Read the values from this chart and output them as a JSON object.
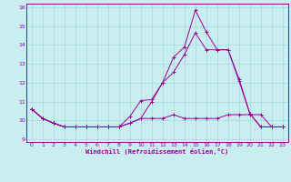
{
  "xlabel": "Windchill (Refroidissement éolien,°C)",
  "background_color": "#c8eef0",
  "grid_color": "#a8d8dc",
  "line_color": "#990099",
  "xlim": [
    -0.5,
    23.5
  ],
  "ylim": [
    8.85,
    16.2
  ],
  "xticks": [
    0,
    1,
    2,
    3,
    4,
    5,
    6,
    7,
    8,
    9,
    10,
    11,
    12,
    13,
    14,
    15,
    16,
    17,
    18,
    19,
    20,
    21,
    22,
    23
  ],
  "yticks": [
    9,
    10,
    11,
    12,
    13,
    14,
    15,
    16
  ],
  "line1_x": [
    0,
    1,
    2,
    3,
    4,
    5,
    6,
    7,
    8,
    9,
    10,
    11,
    12,
    13,
    14,
    15,
    16,
    17,
    18,
    19,
    20,
    21,
    22,
    23
  ],
  "line1_y": [
    10.6,
    10.1,
    9.85,
    9.65,
    9.65,
    9.65,
    9.65,
    9.65,
    9.65,
    9.85,
    10.1,
    10.1,
    10.1,
    10.3,
    10.1,
    10.1,
    10.1,
    10.1,
    10.3,
    10.3,
    10.3,
    10.3,
    9.65,
    9.65
  ],
  "line2_x": [
    0,
    1,
    2,
    3,
    4,
    5,
    6,
    7,
    8,
    9,
    10,
    11,
    12,
    13,
    14,
    15,
    16,
    17,
    18,
    19,
    20,
    21,
    22,
    23
  ],
  "line2_y": [
    10.6,
    10.1,
    9.85,
    9.65,
    9.65,
    9.65,
    9.65,
    9.65,
    9.65,
    9.85,
    10.1,
    11.0,
    12.0,
    13.35,
    13.9,
    15.85,
    14.7,
    13.75,
    13.75,
    12.1,
    10.35,
    9.65,
    9.65,
    9.65
  ],
  "line3_x": [
    0,
    1,
    2,
    3,
    4,
    5,
    6,
    7,
    8,
    9,
    10,
    11,
    12,
    13,
    14,
    15,
    16,
    17,
    18,
    19,
    20,
    21,
    22,
    23
  ],
  "line3_y": [
    10.6,
    10.1,
    9.85,
    9.65,
    9.65,
    9.65,
    9.65,
    9.65,
    9.65,
    10.2,
    11.05,
    11.1,
    12.0,
    12.55,
    13.5,
    14.65,
    13.75,
    13.75,
    13.75,
    12.2,
    10.35,
    9.65,
    9.65,
    9.65
  ]
}
